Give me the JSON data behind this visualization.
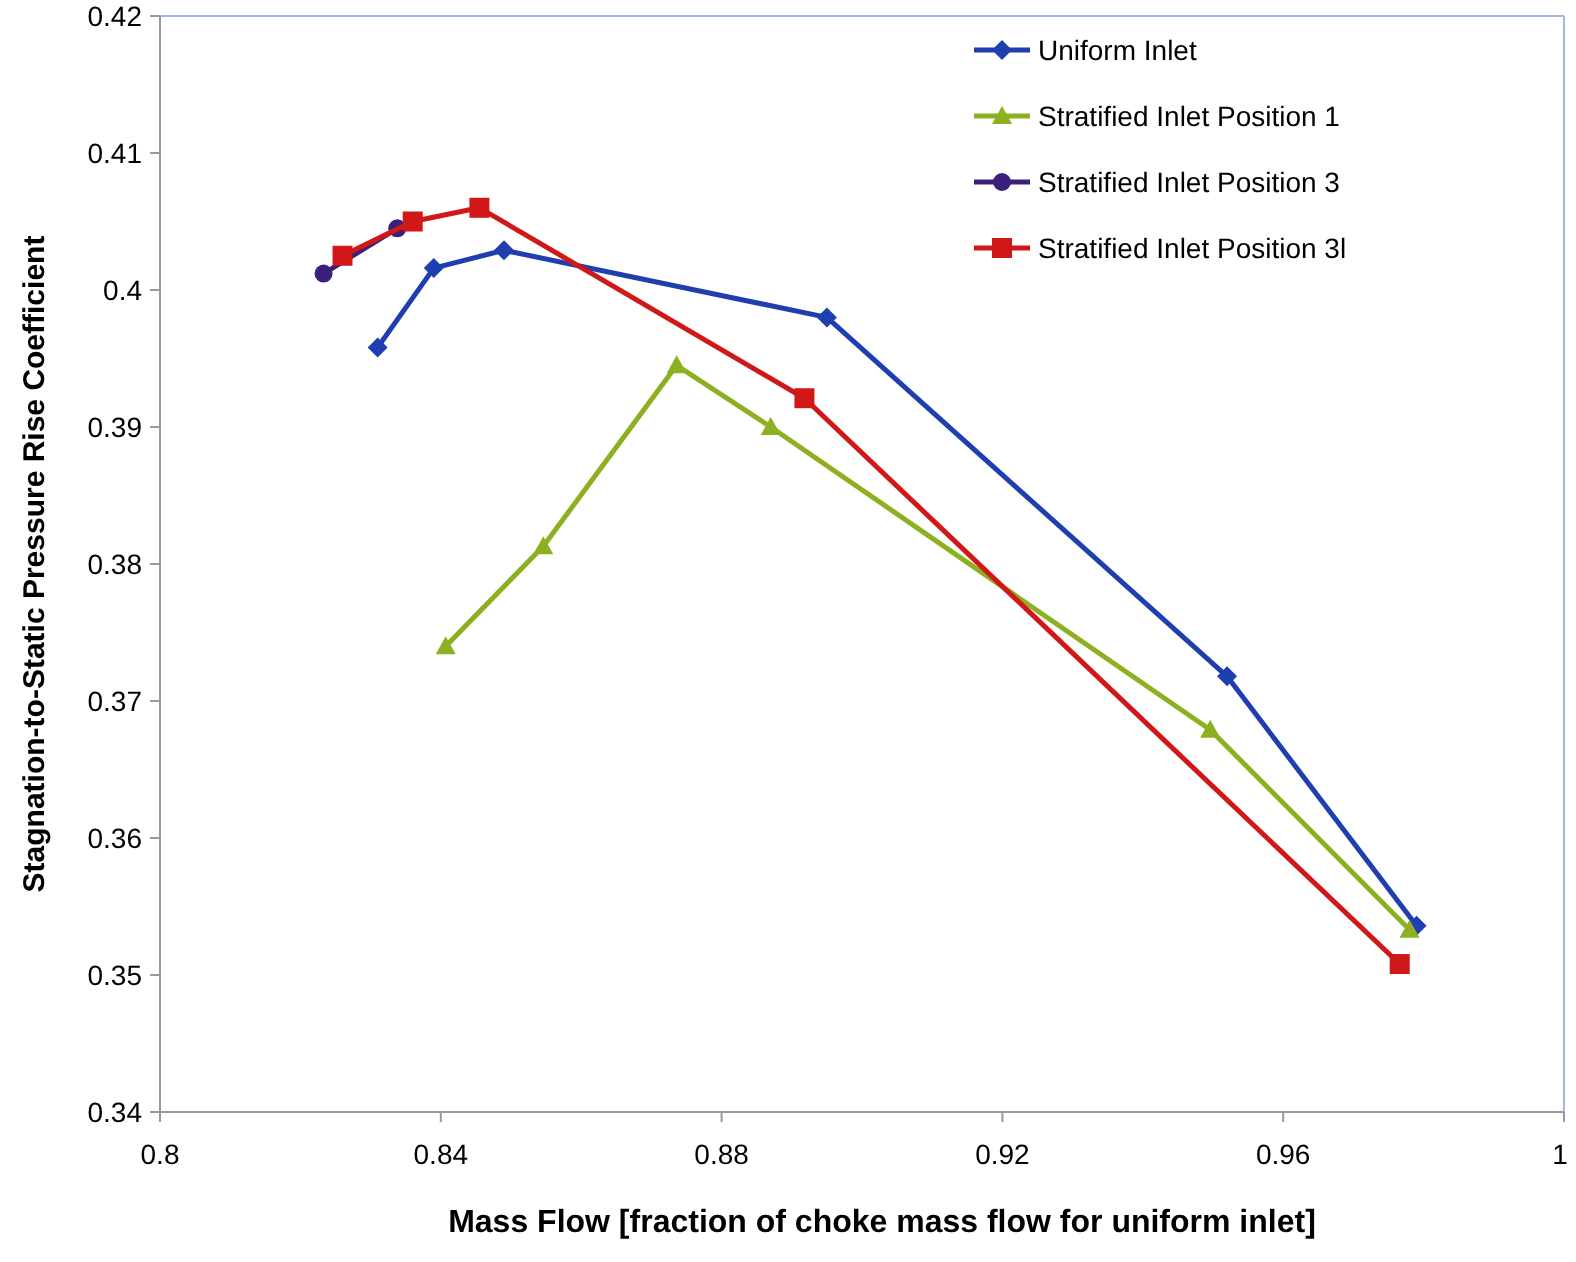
{
  "chart_data": {
    "type": "line",
    "xlabel": "Mass Flow [fraction of choke mass flow for uniform inlet]",
    "ylabel": "Stagnation-to-Static Pressure Rise Coefficient",
    "xlim": [
      0.8,
      1
    ],
    "xticks": [
      0.8,
      0.84,
      0.88,
      0.92,
      0.96,
      1
    ],
    "ylim": [
      0.34,
      0.42
    ],
    "yticks": [
      0.34,
      0.35,
      0.36,
      0.37,
      0.38,
      0.39,
      0.4,
      0.41,
      0.42
    ],
    "grid": false,
    "legend": "top right",
    "series": [
      {
        "name": "Uniform Inlet",
        "color": "#1f3fb0",
        "marker": "diamond",
        "x": [
          0.831,
          0.839,
          0.849,
          0.895,
          0.952,
          0.979
        ],
        "values": [
          0.3958,
          0.4016,
          0.4029,
          0.398,
          0.3718,
          0.3536
        ]
      },
      {
        "name": "Stratified Inlet Position 1",
        "color": "#8db020",
        "marker": "triangle",
        "x": [
          0.8407,
          0.8546,
          0.8736,
          0.887,
          0.9496,
          0.978
        ],
        "values": [
          0.374,
          0.3813,
          0.3945,
          0.39,
          0.3679,
          0.3533
        ]
      },
      {
        "name": "Stratified Inlet Position 3",
        "color": "#3b1f7a",
        "marker": "circle",
        "x": [
          0.8233,
          0.8338
        ],
        "values": [
          0.4012,
          0.4045
        ]
      },
      {
        "name": "Stratified Inlet Position 3l",
        "color": "#d01818",
        "marker": "square",
        "x": [
          0.826,
          0.836,
          0.8455,
          0.8918,
          0.9766
        ],
        "values": [
          0.4025,
          0.405,
          0.406,
          0.3921,
          0.3508
        ]
      }
    ]
  }
}
